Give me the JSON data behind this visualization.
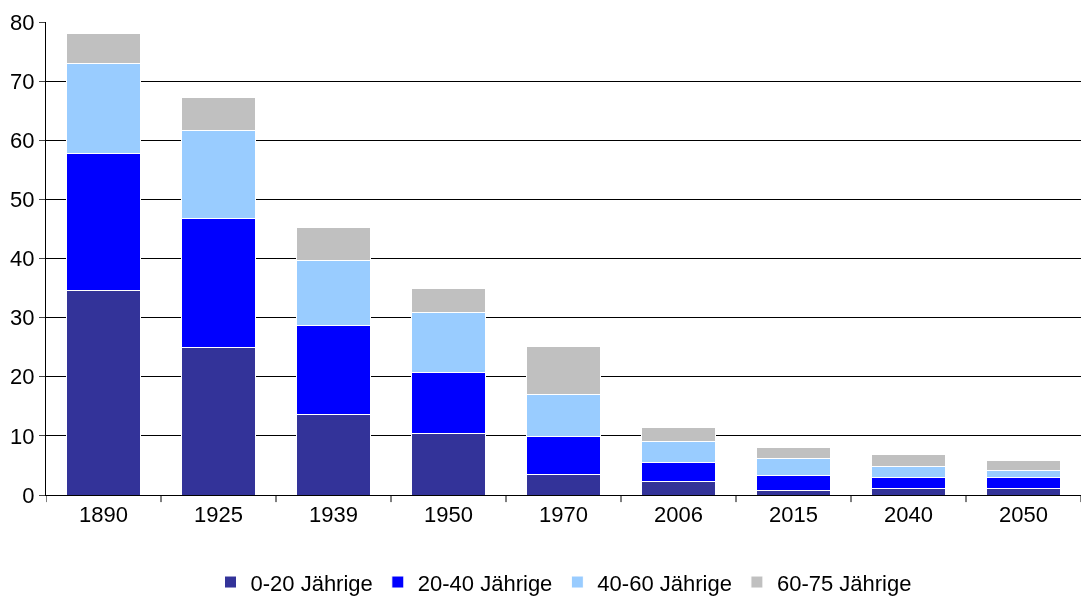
{
  "chart_data": {
    "type": "bar",
    "stacked": true,
    "categories": [
      "1890",
      "1925",
      "1939",
      "1950",
      "1970",
      "2006",
      "2015",
      "2040",
      "2050"
    ],
    "series": [
      {
        "name": "0-20 Jährige",
        "color": "#333399",
        "values": [
          34.6,
          24.9,
          13.7,
          10.4,
          3.5,
          2.2,
          0.7,
          1.1,
          1.1
        ]
      },
      {
        "name": "20-40 Jährige",
        "color": "#0000ff",
        "values": [
          23.1,
          21.9,
          15.0,
          10.3,
          6.4,
          3.3,
          2.6,
          1.9,
          1.9
        ]
      },
      {
        "name": "40-60 Jährige",
        "color": "#99ccff",
        "values": [
          15.2,
          14.8,
          11.0,
          10.1,
          7.1,
          3.6,
          2.8,
          1.8,
          1.1
        ]
      },
      {
        "name": "60-75 Jährige",
        "color": "#c0c0c0",
        "values": [
          5.2,
          5.6,
          5.6,
          4.2,
          8.2,
          2.3,
          2.0,
          2.0,
          1.7
        ]
      }
    ],
    "ylim": [
      0,
      80
    ],
    "yticks": [
      0,
      10,
      20,
      30,
      40,
      50,
      60,
      70,
      80
    ],
    "grid": "y",
    "legend": "bottom"
  }
}
